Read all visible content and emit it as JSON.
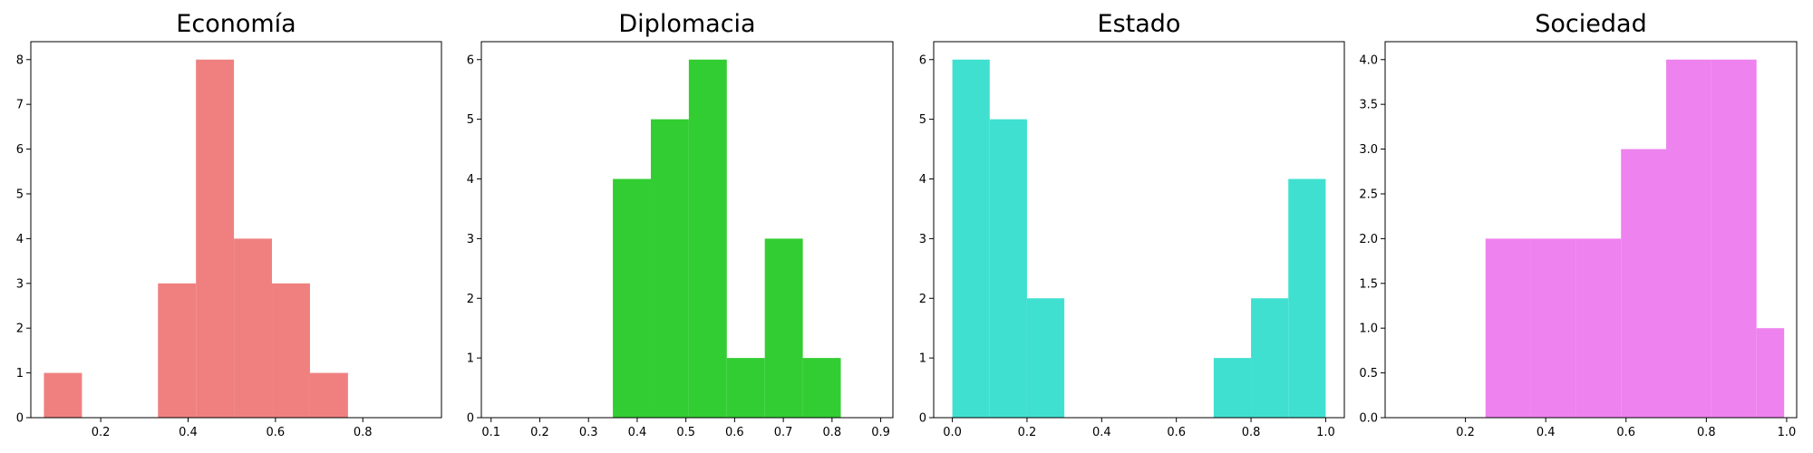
{
  "chart_data": [
    {
      "type": "bar",
      "title": "Economía",
      "color": "#F08080",
      "xlim": [
        0.04,
        0.98
      ],
      "ylim": [
        0,
        8.4
      ],
      "xticks": [
        0.2,
        0.4,
        0.6,
        0.8
      ],
      "xtick_labels": [
        "0.2",
        "0.4",
        "0.6",
        "0.8"
      ],
      "yticks": [
        0,
        1,
        2,
        3,
        4,
        5,
        6,
        7,
        8
      ],
      "ytick_labels": [
        "0",
        "1",
        "2",
        "3",
        "4",
        "5",
        "6",
        "7",
        "8"
      ],
      "bins": [
        {
          "x0": 0.07,
          "x1": 0.157,
          "count": 1
        },
        {
          "x0": 0.157,
          "x1": 0.244,
          "count": 0
        },
        {
          "x0": 0.244,
          "x1": 0.331,
          "count": 0
        },
        {
          "x0": 0.331,
          "x1": 0.418,
          "count": 3
        },
        {
          "x0": 0.418,
          "x1": 0.505,
          "count": 8
        },
        {
          "x0": 0.505,
          "x1": 0.592,
          "count": 4
        },
        {
          "x0": 0.592,
          "x1": 0.679,
          "count": 3
        },
        {
          "x0": 0.679,
          "x1": 0.766,
          "count": 1
        }
      ]
    },
    {
      "type": "bar",
      "title": "Diplomacia",
      "color": "#32CD32",
      "xlim": [
        0.08,
        0.925
      ],
      "ylim": [
        0,
        6.3
      ],
      "xticks": [
        0.1,
        0.2,
        0.3,
        0.4,
        0.5,
        0.6,
        0.7,
        0.8,
        0.9
      ],
      "xtick_labels": [
        "0.1",
        "0.2",
        "0.3",
        "0.4",
        "0.5",
        "0.6",
        "0.7",
        "0.8",
        "0.9"
      ],
      "yticks": [
        0,
        1,
        2,
        3,
        4,
        5,
        6
      ],
      "ytick_labels": [
        "0",
        "1",
        "2",
        "3",
        "4",
        "5",
        "6"
      ],
      "bins": [
        {
          "x0": 0.35,
          "x1": 0.428,
          "count": 4
        },
        {
          "x0": 0.428,
          "x1": 0.506,
          "count": 5
        },
        {
          "x0": 0.506,
          "x1": 0.584,
          "count": 6
        },
        {
          "x0": 0.584,
          "x1": 0.662,
          "count": 1
        },
        {
          "x0": 0.662,
          "x1": 0.74,
          "count": 3
        },
        {
          "x0": 0.74,
          "x1": 0.818,
          "count": 1
        }
      ]
    },
    {
      "type": "bar",
      "title": "Estado",
      "color": "#40E0D0",
      "xlim": [
        -0.05,
        1.05
      ],
      "ylim": [
        0,
        6.3
      ],
      "xticks": [
        0.0,
        0.2,
        0.4,
        0.6,
        0.8,
        1.0
      ],
      "xtick_labels": [
        "0.0",
        "0.2",
        "0.4",
        "0.6",
        "0.8",
        "1.0"
      ],
      "yticks": [
        0,
        1,
        2,
        3,
        4,
        5,
        6
      ],
      "ytick_labels": [
        "0",
        "1",
        "2",
        "3",
        "4",
        "5",
        "6"
      ],
      "bins": [
        {
          "x0": 0.0,
          "x1": 0.1,
          "count": 6
        },
        {
          "x0": 0.1,
          "x1": 0.2,
          "count": 5
        },
        {
          "x0": 0.2,
          "x1": 0.3,
          "count": 2
        },
        {
          "x0": 0.7,
          "x1": 0.8,
          "count": 1
        },
        {
          "x0": 0.8,
          "x1": 0.9,
          "count": 2
        },
        {
          "x0": 0.9,
          "x1": 1.0,
          "count": 4
        }
      ]
    },
    {
      "type": "bar",
      "title": "Sociedad",
      "color": "#EE82EE",
      "xlim": [
        0.0,
        1.025
      ],
      "ylim": [
        0,
        4.2
      ],
      "xticks": [
        0.2,
        0.4,
        0.6,
        0.8,
        1.0
      ],
      "xtick_labels": [
        "0.2",
        "0.4",
        "0.6",
        "0.8",
        "1.0"
      ],
      "yticks": [
        0.0,
        0.5,
        1.0,
        1.5,
        2.0,
        2.5,
        3.0,
        3.5,
        4.0
      ],
      "ytick_labels": [
        "0.0",
        "0.5",
        "1.0",
        "1.5",
        "2.0",
        "2.5",
        "3.0",
        "3.5",
        "4.0"
      ],
      "bins": [
        {
          "x0": 0.25,
          "x1": 0.3625,
          "count": 2
        },
        {
          "x0": 0.3625,
          "x1": 0.475,
          "count": 2
        },
        {
          "x0": 0.475,
          "x1": 0.5875,
          "count": 2
        },
        {
          "x0": 0.5875,
          "x1": 0.7,
          "count": 3
        },
        {
          "x0": 0.7,
          "x1": 0.8125,
          "count": 4
        },
        {
          "x0": 0.8125,
          "x1": 0.925,
          "count": 4
        },
        {
          "x0": 0.925,
          "x1": 0.9938,
          "count": 1
        }
      ]
    }
  ]
}
